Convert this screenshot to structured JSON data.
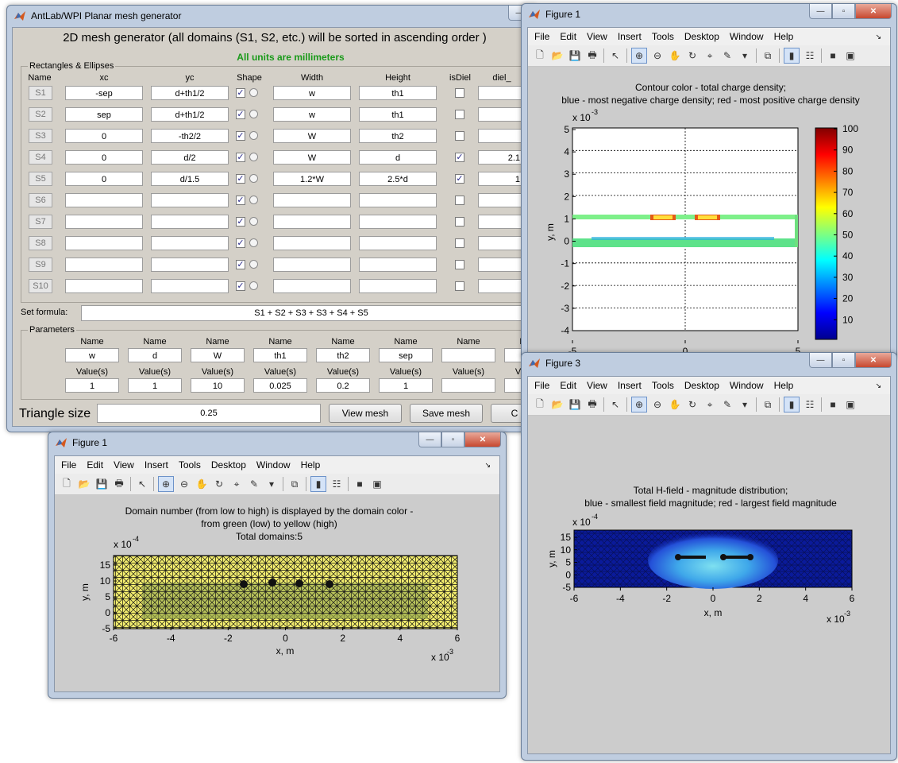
{
  "gui": {
    "title": "AntLab/WPI Planar mesh generator",
    "heading": "2D mesh generator (all domains (S1, S2, etc.) will be sorted in ascending order )",
    "units_note": "All units are millimeters",
    "rect_panel_label": "Rectangles & Ellipses",
    "columns": [
      "Name",
      "xc",
      "yc",
      "Shape",
      "Width",
      "Height",
      "isDiel",
      "diel_"
    ],
    "rows": [
      {
        "name": "S1",
        "xc": "-sep",
        "yc": "d+th1/2",
        "width": "w",
        "height": "th1",
        "isDiel": false,
        "diel": ""
      },
      {
        "name": "S2",
        "xc": "sep",
        "yc": "d+th1/2",
        "width": "w",
        "height": "th1",
        "isDiel": false,
        "diel": ""
      },
      {
        "name": "S3",
        "xc": "0",
        "yc": "-th2/2",
        "width": "W",
        "height": "th2",
        "isDiel": false,
        "diel": ""
      },
      {
        "name": "S4",
        "xc": "0",
        "yc": "d/2",
        "width": "W",
        "height": "d",
        "isDiel": true,
        "diel": "2.1"
      },
      {
        "name": "S5",
        "xc": "0",
        "yc": "d/1.5",
        "width": "1.2*W",
        "height": "2.5*d",
        "isDiel": true,
        "diel": "1"
      },
      {
        "name": "S6",
        "xc": "",
        "yc": "",
        "width": "",
        "height": "",
        "isDiel": false,
        "diel": ""
      },
      {
        "name": "S7",
        "xc": "",
        "yc": "",
        "width": "",
        "height": "",
        "isDiel": false,
        "diel": ""
      },
      {
        "name": "S8",
        "xc": "",
        "yc": "",
        "width": "",
        "height": "",
        "isDiel": false,
        "diel": ""
      },
      {
        "name": "S9",
        "xc": "",
        "yc": "",
        "width": "",
        "height": "",
        "isDiel": false,
        "diel": ""
      },
      {
        "name": "S10",
        "xc": "",
        "yc": "",
        "width": "",
        "height": "",
        "isDiel": false,
        "diel": ""
      }
    ],
    "formula_label": "Set formula:",
    "formula": "S1 + S2 + S3 + S3 + S4 + S5",
    "params_label": "Parameters",
    "param_name_hdr": "Name",
    "param_value_hdr": "Value(s)",
    "params": [
      {
        "name": "w",
        "value": "1"
      },
      {
        "name": "d",
        "value": "1"
      },
      {
        "name": "W",
        "value": "10"
      },
      {
        "name": "th1",
        "value": "0.025"
      },
      {
        "name": "th2",
        "value": "0.2"
      },
      {
        "name": "sep",
        "value": "1"
      },
      {
        "name": "",
        "value": ""
      },
      {
        "name": "N",
        "value": ""
      }
    ],
    "triangle_label": "Triangle size",
    "triangle_value": "0.25",
    "view_mesh": "View mesh",
    "save_mesh": "Save mesh",
    "cut_btn": "C"
  },
  "menus": [
    "File",
    "Edit",
    "View",
    "Insert",
    "Tools",
    "Desktop",
    "Window",
    "Help"
  ],
  "fig_charge": {
    "title": "Figure 1",
    "line1": "Contour color - total charge density;",
    "line2": "blue - most negative charge density; red - most positive charge density",
    "exp": "x 10",
    "exp_pow": "-3",
    "ylabel": "y, m",
    "yticks": [
      "5",
      "4",
      "3",
      "2",
      "1",
      "0",
      "-1",
      "-2",
      "-3",
      "-4"
    ],
    "xticks": [
      "-5",
      "0",
      "5"
    ],
    "cbar_ticks": [
      "100",
      "90",
      "80",
      "70",
      "60",
      "50",
      "40",
      "30",
      "20",
      "10"
    ]
  },
  "fig_mesh": {
    "title": "Figure 1",
    "line1": "Domain number (from low to high) is displayed by the domain color -",
    "line2": "from green (low) to yellow (high)",
    "line3": "Total domains:5",
    "yexp": "x 10",
    "yexp_pow": "-4",
    "xexp": "x 10",
    "xexp_pow": "-3",
    "ylabel": "y, m",
    "xlabel": "x, m",
    "yticks": [
      "15",
      "10",
      "5",
      "0",
      "-5"
    ],
    "xticks": [
      "-6",
      "-4",
      "-2",
      "0",
      "2",
      "4",
      "6"
    ]
  },
  "fig_h": {
    "title": "Figure 3",
    "line1": "Total H-field - magnitude distribution;",
    "line2": "blue - smallest field magnitude; red - largest field magnitude",
    "yexp": "x 10",
    "yexp_pow": "-4",
    "xexp": "x 10",
    "xexp_pow": "-3",
    "ylabel": "y, m",
    "xlabel": "x, m",
    "yticks": [
      "15",
      "10",
      "5",
      "0",
      "-5"
    ],
    "xticks": [
      "-6",
      "-4",
      "-2",
      "0",
      "2",
      "4",
      "6"
    ]
  },
  "colors": {
    "accent_green": "#1a9a1a",
    "window_frame": "#bfcde0",
    "figure_bg": "#cccccc"
  }
}
